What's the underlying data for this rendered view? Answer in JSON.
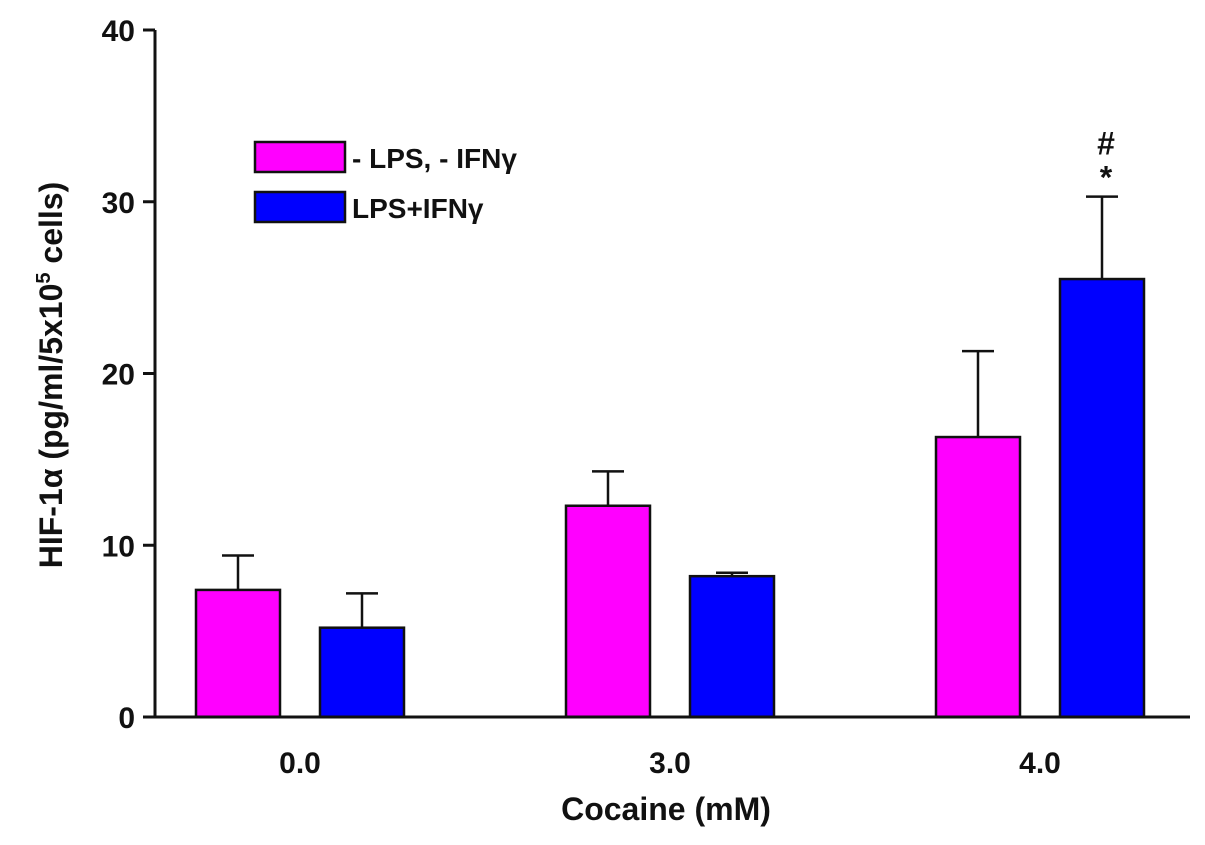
{
  "chart_data": {
    "type": "bar",
    "categories": [
      "0.0",
      "3.0",
      "4.0"
    ],
    "series": [
      {
        "name": "- LPS, - IFNγ",
        "color": "#ff00ff",
        "values": [
          7.4,
          12.3,
          16.3
        ],
        "errors": [
          2.0,
          2.0,
          5.0
        ]
      },
      {
        "name": "LPS+IFNγ",
        "color": "#0000ff",
        "values": [
          5.2,
          8.2,
          25.5
        ],
        "errors": [
          2.0,
          0.2,
          4.8
        ]
      }
    ],
    "xlabel": "Cocaine (mM)",
    "ylabel": {
      "prefix": "HIF-1α (pg/ml/5x10",
      "superscript": "5",
      "suffix": " cells)"
    },
    "ylim": [
      0,
      40
    ],
    "yticks": [
      0,
      10,
      20,
      30,
      40
    ],
    "annotations": [
      {
        "category": "4.0",
        "series": "LPS+IFNγ",
        "lines": [
          "#",
          "*"
        ]
      }
    ],
    "grid": false,
    "legend_position": "top-left"
  }
}
